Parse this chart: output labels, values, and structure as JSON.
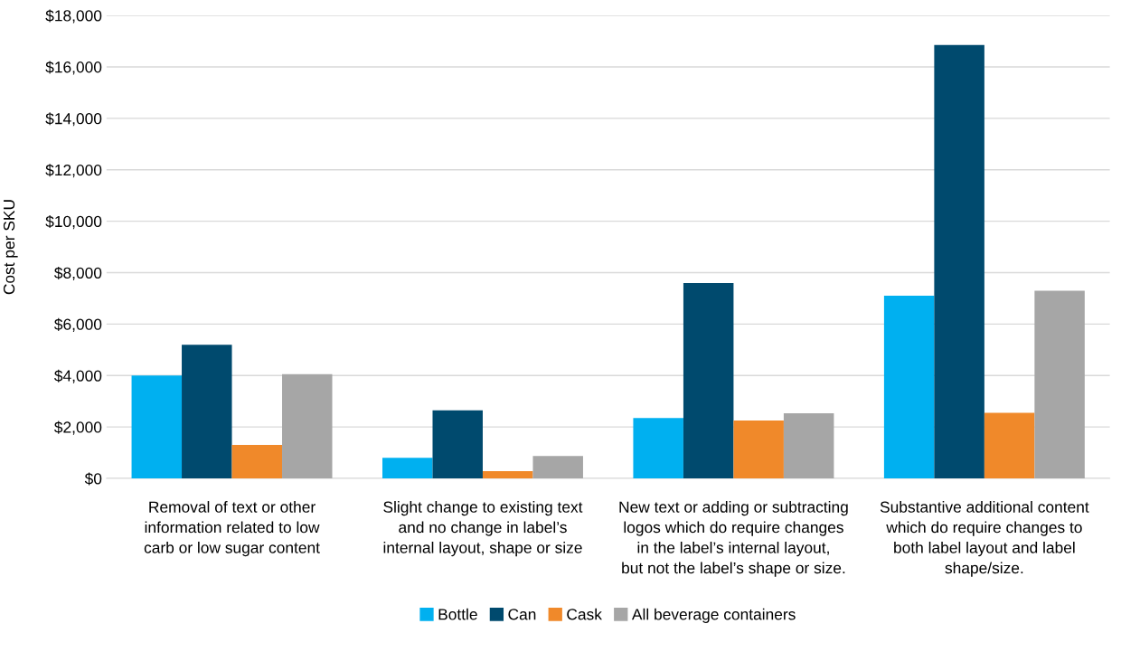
{
  "chart_data": {
    "type": "bar",
    "ylabel": "Cost per SKU",
    "categories": [
      "Removal of text or other\ninformation related to low\ncarb or low sugar content",
      "Slight change to existing text\nand no change in label’s\ninternal layout, shape or size",
      "New text or adding or subtracting\nlogos which do require changes\nin the label’s internal layout,\nbut not the label’s shape or size.",
      "Substantive additional content\nwhich do require changes to\nboth label layout and label\nshape/size."
    ],
    "series": [
      {
        "name": "Bottle",
        "color": "#00b0f0",
        "values": [
          4000,
          800,
          2350,
          7100
        ]
      },
      {
        "name": "Can",
        "color": "#004a6e",
        "values": [
          5200,
          2650,
          7600,
          16850
        ]
      },
      {
        "name": "Cask",
        "color": "#f0892a",
        "values": [
          1300,
          280,
          2250,
          2550
        ]
      },
      {
        "name": "All beverage containers",
        "color": "#a6a6a6",
        "values": [
          4050,
          870,
          2530,
          7300
        ]
      }
    ],
    "ylim": [
      0,
      18000
    ],
    "yticks": [
      {
        "value": 0,
        "label": "$0"
      },
      {
        "value": 2000,
        "label": "$2,000"
      },
      {
        "value": 4000,
        "label": "$4,000"
      },
      {
        "value": 6000,
        "label": "$6,000"
      },
      {
        "value": 8000,
        "label": "$8,000"
      },
      {
        "value": 10000,
        "label": "$10,000"
      },
      {
        "value": 12000,
        "label": "$12,000"
      },
      {
        "value": 14000,
        "label": "$14,000"
      },
      {
        "value": 16000,
        "label": "$16,000"
      },
      {
        "value": 18000,
        "label": "$18,000"
      }
    ],
    "grid": "y",
    "legend": "bottom"
  }
}
